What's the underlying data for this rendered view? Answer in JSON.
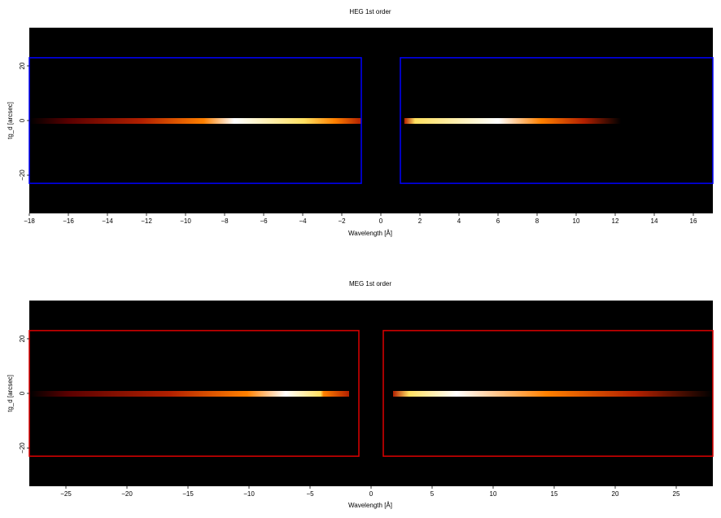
{
  "chart_data": [
    {
      "type": "heatmap",
      "title": "HEG 1st order",
      "xlabel": "Wavelength [Å]",
      "ylabel": "tg_d [arcsec]",
      "xlim": [
        -18,
        17
      ],
      "ylim": [
        -34,
        34
      ],
      "xticks": [
        -18,
        -16,
        -14,
        -12,
        -10,
        -8,
        -6,
        -4,
        -2,
        0,
        2,
        4,
        6,
        8,
        10,
        12,
        14,
        16
      ],
      "yticks": [
        -20,
        0,
        20
      ],
      "box_color": "#0000ff",
      "regions": [
        {
          "x": [
            -18,
            -1
          ],
          "y": [
            -23,
            23
          ]
        },
        {
          "x": [
            1,
            17
          ],
          "y": [
            -23,
            23
          ]
        }
      ],
      "trace": {
        "y": 0,
        "segments": [
          {
            "x": [
              -18,
              -1.0
            ],
            "peak": -7.5
          },
          {
            "x": [
              1.2,
              12.3
            ],
            "peak": 6.0
          }
        ]
      },
      "colormap": [
        "#000000",
        "#5a0000",
        "#b22000",
        "#ff8000",
        "#ffe060",
        "#ffffff"
      ]
    },
    {
      "type": "heatmap",
      "title": "MEG 1st order",
      "xlabel": "Wavelength [Å]",
      "ylabel": "tg_d [arcsec]",
      "xlim": [
        -28,
        28
      ],
      "ylim": [
        -34,
        34
      ],
      "xticks": [
        -25,
        -20,
        -15,
        -10,
        -5,
        0,
        5,
        10,
        15,
        20,
        25
      ],
      "yticks": [
        -20,
        0,
        20
      ],
      "box_color": "#dd0000",
      "regions": [
        {
          "x": [
            -28,
            -1
          ],
          "y": [
            -23,
            23
          ]
        },
        {
          "x": [
            1,
            28
          ],
          "y": [
            -23,
            23
          ]
        }
      ],
      "trace": {
        "y": 0,
        "segments": [
          {
            "x": [
              -28,
              -1.8
            ],
            "peak": -7.0
          },
          {
            "x": [
              1.8,
              28
            ],
            "peak": 7.0
          }
        ]
      },
      "colormap": [
        "#000000",
        "#5a0000",
        "#b22000",
        "#ff8000",
        "#ffe060",
        "#ffffff"
      ]
    }
  ]
}
